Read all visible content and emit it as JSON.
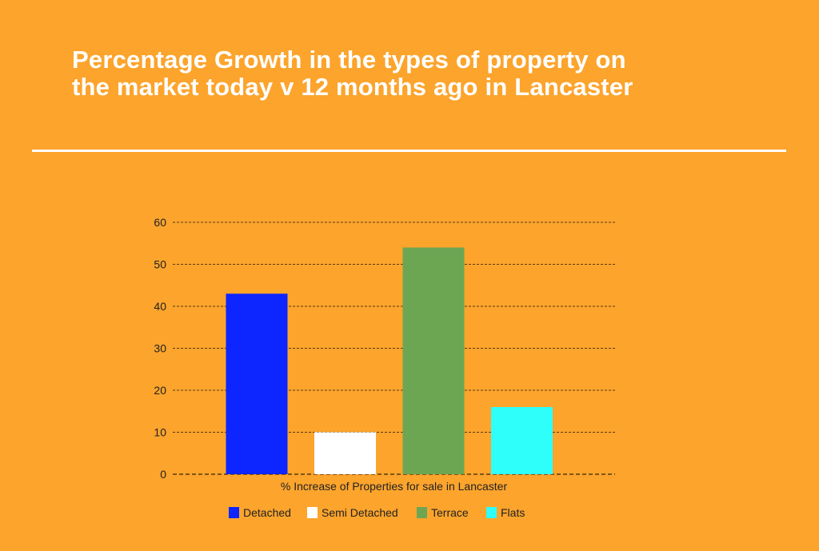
{
  "title_line1": "Percentage Growth in the types of property on",
  "title_line2": "the market today v 12 months ago in Lancaster",
  "chart_data": {
    "type": "bar",
    "title": "Percentage Growth in the types of property on the market today v 12 months ago in Lancaster",
    "xlabel": "% Increase of Properties for sale in Lancaster",
    "ylabel": "",
    "ylim": [
      0,
      60
    ],
    "yticks": [
      0,
      10,
      20,
      30,
      40,
      50,
      60
    ],
    "grid": true,
    "legend": "bottom",
    "series": [
      {
        "name": "Detached",
        "value": 43,
        "color": "#0D25FF"
      },
      {
        "name": "Semi Detached",
        "value": 10,
        "color": "#FFFFFF"
      },
      {
        "name": "Terrace",
        "value": 54,
        "color": "#6CA653"
      },
      {
        "name": "Flats",
        "value": 16,
        "color": "#2EFFFB"
      }
    ]
  }
}
